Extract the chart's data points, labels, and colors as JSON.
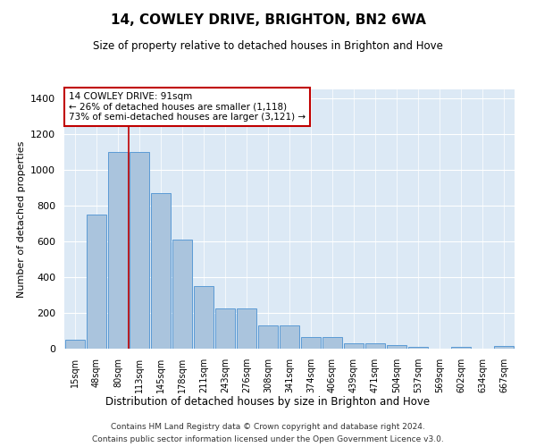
{
  "title": "14, COWLEY DRIVE, BRIGHTON, BN2 6WA",
  "subtitle": "Size of property relative to detached houses in Brighton and Hove",
  "xlabel": "Distribution of detached houses by size in Brighton and Hove",
  "ylabel": "Number of detached properties",
  "footnote1": "Contains HM Land Registry data © Crown copyright and database right 2024.",
  "footnote2": "Contains public sector information licensed under the Open Government Licence v3.0.",
  "categories": [
    "15sqm",
    "48sqm",
    "80sqm",
    "113sqm",
    "145sqm",
    "178sqm",
    "211sqm",
    "243sqm",
    "276sqm",
    "308sqm",
    "341sqm",
    "374sqm",
    "406sqm",
    "439sqm",
    "471sqm",
    "504sqm",
    "537sqm",
    "569sqm",
    "602sqm",
    "634sqm",
    "667sqm"
  ],
  "values": [
    50,
    750,
    1100,
    1100,
    870,
    610,
    350,
    225,
    225,
    130,
    130,
    65,
    65,
    30,
    30,
    20,
    10,
    0,
    10,
    0,
    15
  ],
  "bar_color": "#aac4dd",
  "bar_edge_color": "#5b9bd5",
  "background_color": "#dce9f5",
  "annotation_line1": "14 COWLEY DRIVE: 91sqm",
  "annotation_line2": "← 26% of detached houses are smaller (1,118)",
  "annotation_line3": "73% of semi-detached houses are larger (3,121) →",
  "vline_x": 2.5,
  "vline_color": "#c00000",
  "ylim": [
    0,
    1450
  ],
  "yticks": [
    0,
    200,
    400,
    600,
    800,
    1000,
    1200,
    1400
  ]
}
